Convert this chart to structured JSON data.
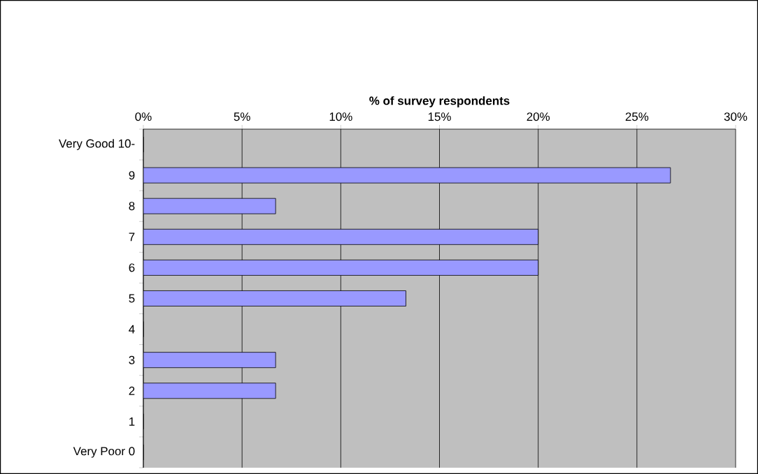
{
  "chart_data": {
    "type": "bar",
    "orientation": "horizontal",
    "xlabel": "% of survey respondents",
    "categories": [
      "Very Good 10-",
      "9",
      "8",
      "7",
      "6",
      "5",
      "4",
      "3",
      "2",
      "1",
      "Very Poor 0"
    ],
    "values": [
      0,
      26.7,
      6.7,
      20,
      20,
      13.3,
      0,
      6.7,
      6.7,
      0,
      0
    ],
    "color": "#9999ff",
    "xlim": [
      0,
      30
    ],
    "xticks": [
      {
        "value": 0,
        "label": "0%"
      },
      {
        "value": 5,
        "label": "5%"
      },
      {
        "value": 10,
        "label": "10%"
      },
      {
        "value": 15,
        "label": "15%"
      },
      {
        "value": 20,
        "label": "20%"
      },
      {
        "value": 25,
        "label": "25%"
      },
      {
        "value": 30,
        "label": "30%"
      }
    ],
    "grid": "x"
  }
}
